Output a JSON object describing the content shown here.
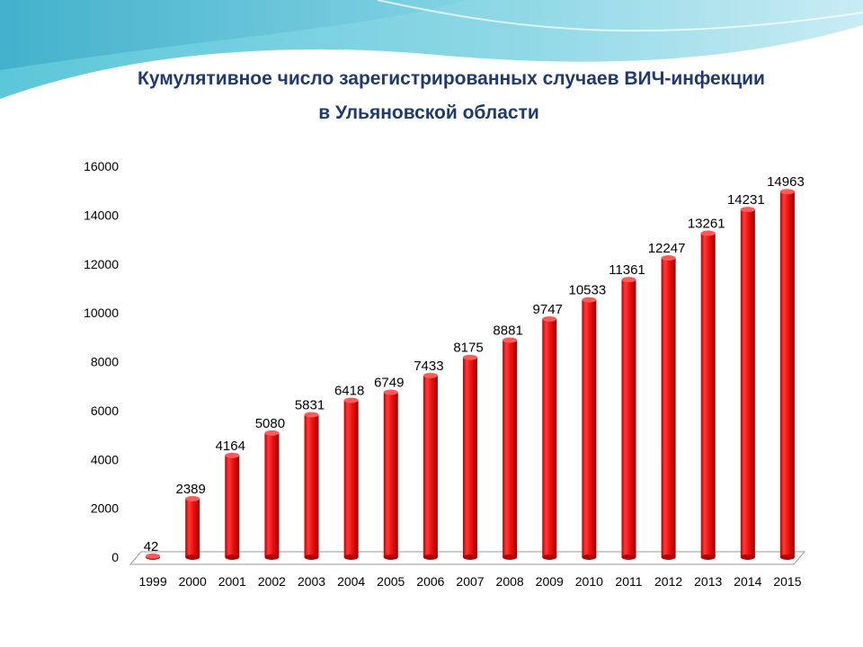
{
  "chart_data": {
    "type": "bar",
    "title_lines": [
      "Кумулятивное число зарегистрированных случаев ВИЧ-инфекции",
      "в Ульяновской области"
    ],
    "xlabel": "",
    "ylabel": "",
    "categories": [
      "1999",
      "2000",
      "2001",
      "2002",
      "2003",
      "2004",
      "2005",
      "2006",
      "2007",
      "2008",
      "2009",
      "2010",
      "2011",
      "2012",
      "2013",
      "2014",
      "2015"
    ],
    "values": [
      42,
      2389,
      4164,
      5080,
      5831,
      6418,
      6749,
      7433,
      8175,
      8881,
      9747,
      10533,
      11361,
      12247,
      13261,
      14231,
      14963
    ],
    "ylim": [
      0,
      16000
    ],
    "yticks": [
      0,
      2000,
      4000,
      6000,
      8000,
      10000,
      12000,
      14000,
      16000
    ],
    "grid": false,
    "legend": "none",
    "bar_color": "#ee1111"
  }
}
